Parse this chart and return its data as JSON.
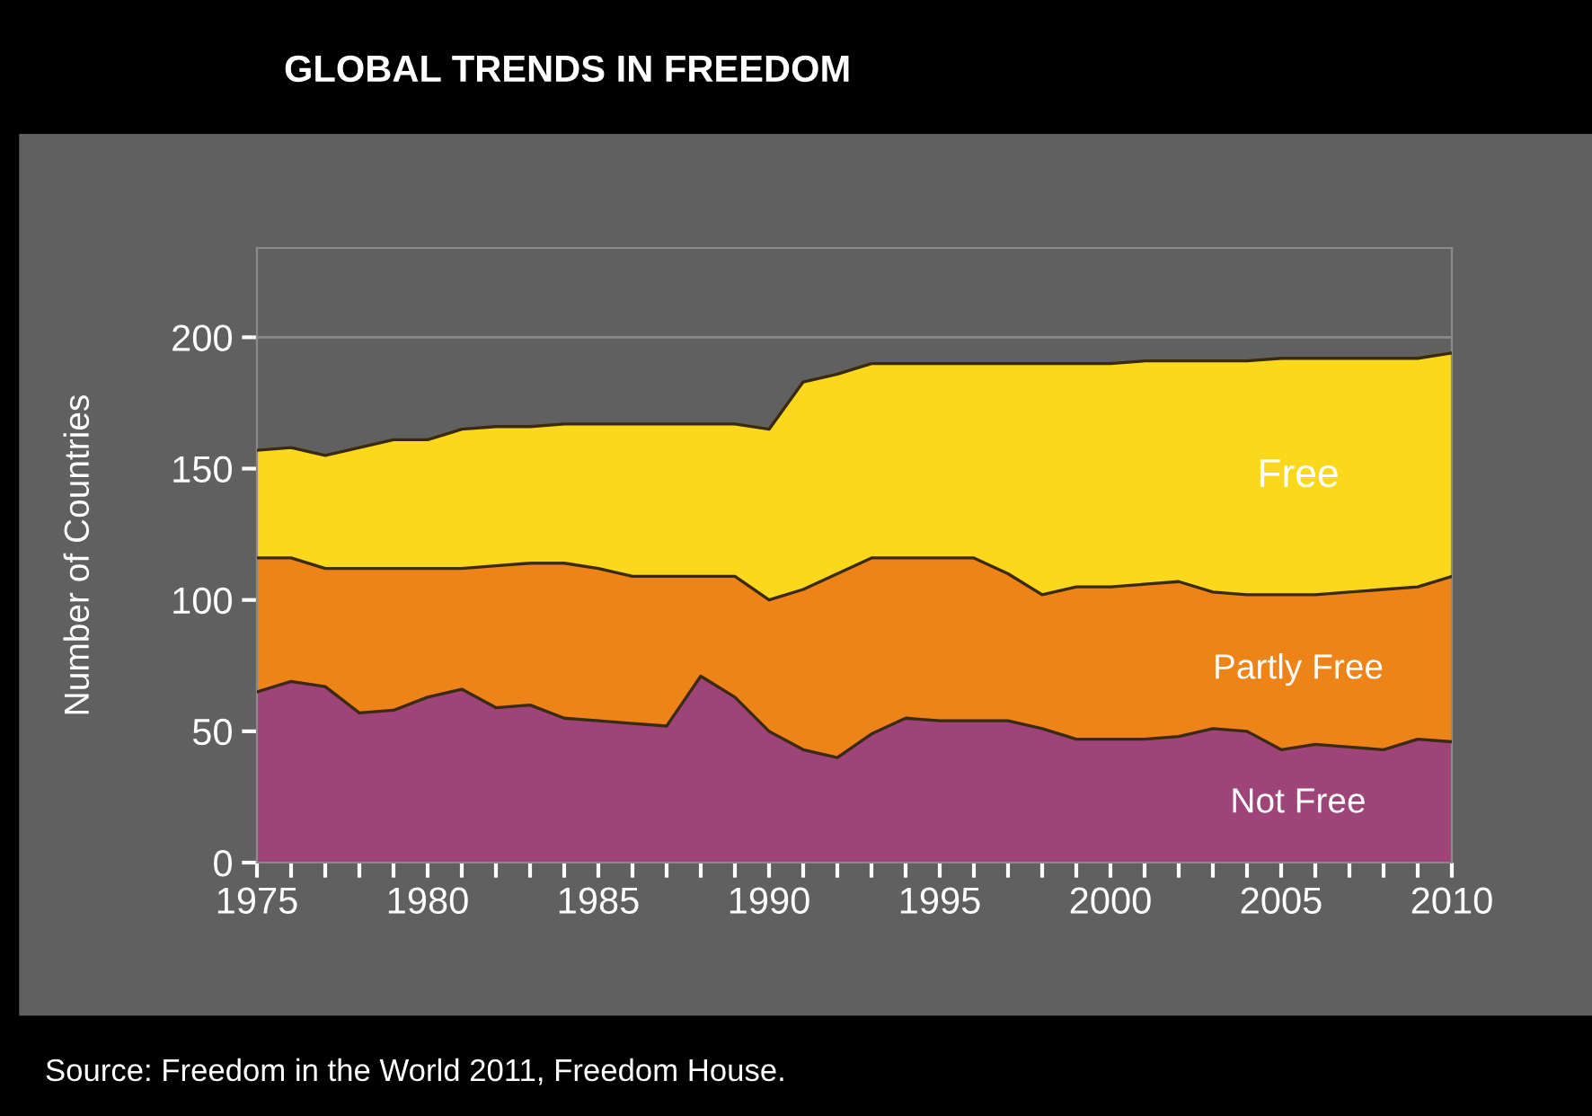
{
  "chart_data": {
    "type": "area",
    "stacked": true,
    "title": "GLOBAL TRENDS IN FREEDOM",
    "ylabel": "Number of Countries",
    "annotations": [
      "Source: Freedom in the World 2011, Freedom House."
    ],
    "x": [
      1975,
      1976,
      1977,
      1978,
      1979,
      1980,
      1981,
      1982,
      1983,
      1984,
      1985,
      1986,
      1987,
      1988,
      1989,
      1990,
      1991,
      1992,
      1993,
      1994,
      1995,
      1996,
      1997,
      1998,
      1999,
      2000,
      2001,
      2002,
      2003,
      2004,
      2005,
      2006,
      2007,
      2008,
      2009,
      2010
    ],
    "series": [
      {
        "name": "Not Free",
        "color": "#9e4478",
        "values": [
          65,
          69,
          67,
          57,
          58,
          63,
          66,
          59,
          60,
          55,
          54,
          53,
          52,
          71,
          63,
          50,
          43,
          40,
          49,
          55,
          54,
          54,
          54,
          51,
          47,
          47,
          47,
          48,
          51,
          50,
          43,
          45,
          44,
          43,
          47,
          46
        ]
      },
      {
        "name": "Partly Free",
        "color": "#ee8418",
        "values": [
          51,
          47,
          45,
          55,
          54,
          49,
          46,
          54,
          54,
          59,
          58,
          56,
          57,
          38,
          46,
          50,
          61,
          70,
          67,
          61,
          62,
          62,
          56,
          51,
          58,
          58,
          59,
          59,
          52,
          52,
          59,
          57,
          59,
          61,
          58,
          63
        ]
      },
      {
        "name": "Free",
        "color": "#fbd81c",
        "values": [
          41,
          42,
          43,
          46,
          49,
          49,
          53,
          53,
          52,
          53,
          55,
          58,
          58,
          58,
          58,
          65,
          79,
          76,
          74,
          74,
          74,
          74,
          80,
          88,
          85,
          85,
          85,
          84,
          88,
          89,
          90,
          90,
          89,
          88,
          87,
          85
        ]
      }
    ],
    "xlim": [
      1975,
      2010
    ],
    "ylim": [
      0,
      234
    ],
    "xticks": [
      1975,
      {
        "value": 1976,
        "label": null
      },
      {
        "value": 1977,
        "label": null
      },
      {
        "value": 1978,
        "label": null
      },
      {
        "value": 1979,
        "label": null
      },
      1980,
      {
        "value": 1981,
        "label": null
      },
      {
        "value": 1982,
        "label": null
      },
      {
        "value": 1983,
        "label": null
      },
      {
        "value": 1984,
        "label": null
      },
      1985,
      {
        "value": 1986,
        "label": null
      },
      {
        "value": 1987,
        "label": null
      },
      {
        "value": 1988,
        "label": null
      },
      {
        "value": 1989,
        "label": null
      },
      1990,
      {
        "value": 1991,
        "label": null
      },
      {
        "value": 1992,
        "label": null
      },
      {
        "value": 1993,
        "label": null
      },
      {
        "value": 1994,
        "label": null
      },
      1995,
      {
        "value": 1996,
        "label": null
      },
      {
        "value": 1997,
        "label": null
      },
      {
        "value": 1998,
        "label": null
      },
      {
        "value": 1999,
        "label": null
      },
      2000,
      {
        "value": 2001,
        "label": null
      },
      {
        "value": 2002,
        "label": null
      },
      {
        "value": 2003,
        "label": null
      },
      {
        "value": 2004,
        "label": null
      },
      2005,
      {
        "value": 2006,
        "label": null
      },
      {
        "value": 2007,
        "label": null
      },
      {
        "value": 2008,
        "label": null
      },
      {
        "value": 2009,
        "label": null
      },
      2010
    ],
    "yticks": [
      0,
      50,
      100,
      150,
      200
    ],
    "grid": "y",
    "legend": false
  }
}
